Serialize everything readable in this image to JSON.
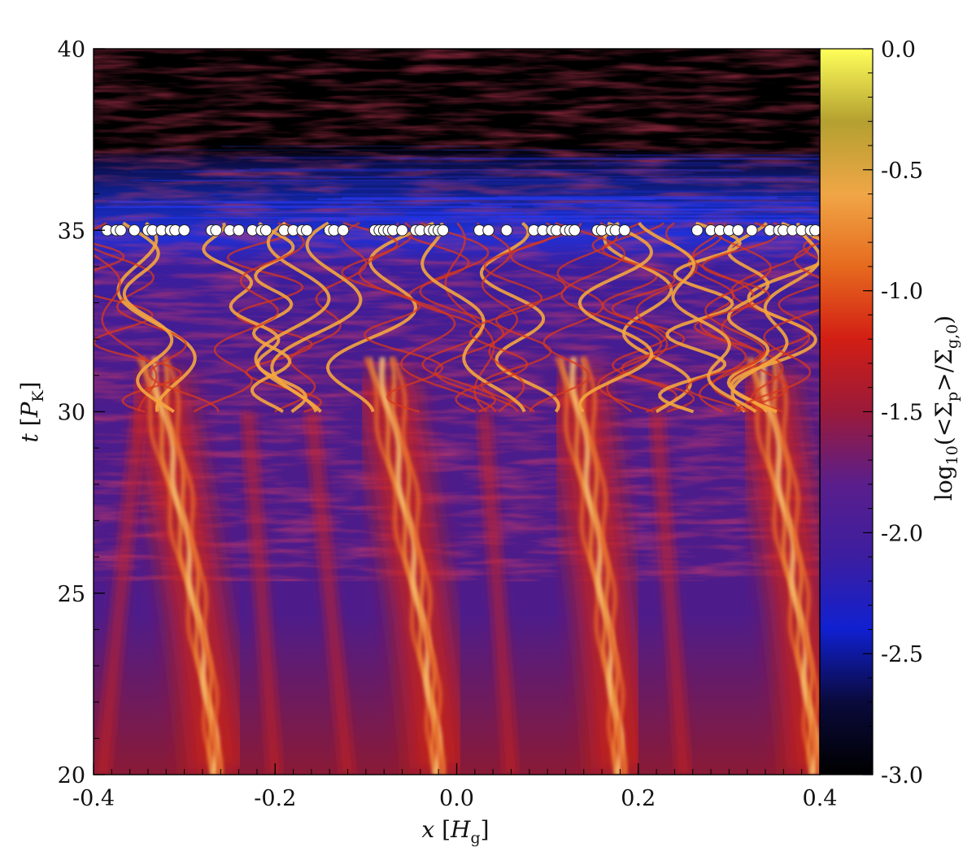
{
  "chart_data": {
    "type": "heatmap",
    "title": "",
    "xlabel": {
      "var": "x",
      "unit_main": "H",
      "unit_sub": "g"
    },
    "ylabel": {
      "var": "t",
      "unit_main": "P",
      "unit_sub": "K"
    },
    "colorbar_label": {
      "prefix": "log",
      "prefix_sub": "10",
      "open": "(<",
      "num_main": "Σ",
      "num_sub": "p",
      "mid": ">/",
      "den_main": "Σ",
      "den_sub": "g,0",
      "close": ")"
    },
    "xlim": [
      -0.4,
      0.4
    ],
    "ylim": [
      20,
      40
    ],
    "clim": [
      -3.0,
      0.0
    ],
    "x_ticks": [
      "-0.4",
      "-0.2",
      "0.0",
      "0.2",
      "0.4"
    ],
    "x_tick_values": [
      -0.4,
      -0.2,
      0.0,
      0.2,
      0.4
    ],
    "y_ticks": [
      "20",
      "25",
      "30",
      "35",
      "40"
    ],
    "y_tick_values": [
      20,
      25,
      30,
      35,
      40
    ],
    "colorbar_ticks": [
      "-3.0",
      "-2.5",
      "-2.0",
      "-1.5",
      "-1.0",
      "-0.5",
      "0.0"
    ],
    "colorbar_tick_values": [
      -3.0,
      -2.5,
      -2.0,
      -1.5,
      -1.0,
      -0.5,
      0.0
    ],
    "colormap": [
      "#000000",
      "#0a0a3c",
      "#1020d0",
      "#3c1ea0",
      "#5a1e8c",
      "#9a1a3a",
      "#d21e14",
      "#e66a1e",
      "#f0a646",
      "#b4a030",
      "#ffff5a"
    ],
    "filaments": [
      {
        "x_start": -0.265,
        "x_end": -0.33
      },
      {
        "x_start": -0.02,
        "x_end": -0.08
      },
      {
        "x_start": 0.18,
        "x_end": 0.13
      },
      {
        "x_start": 0.395,
        "x_end": 0.34
      }
    ],
    "planetesimals": {
      "t": 35,
      "x": [
        -0.385,
        -0.375,
        -0.37,
        -0.355,
        -0.34,
        -0.335,
        -0.325,
        -0.315,
        -0.31,
        -0.3,
        -0.27,
        -0.265,
        -0.25,
        -0.24,
        -0.225,
        -0.215,
        -0.21,
        -0.19,
        -0.18,
        -0.17,
        -0.165,
        -0.14,
        -0.135,
        -0.125,
        -0.09,
        -0.085,
        -0.08,
        -0.075,
        -0.07,
        -0.06,
        -0.045,
        -0.04,
        -0.03,
        -0.025,
        -0.02,
        -0.015,
        0.025,
        0.035,
        0.055,
        0.085,
        0.095,
        0.105,
        0.11,
        0.12,
        0.125,
        0.13,
        0.155,
        0.16,
        0.17,
        0.175,
        0.185,
        0.265,
        0.28,
        0.29,
        0.3,
        0.31,
        0.325,
        0.345,
        0.355,
        0.36,
        0.37,
        0.38,
        0.39,
        0.395
      ]
    }
  }
}
